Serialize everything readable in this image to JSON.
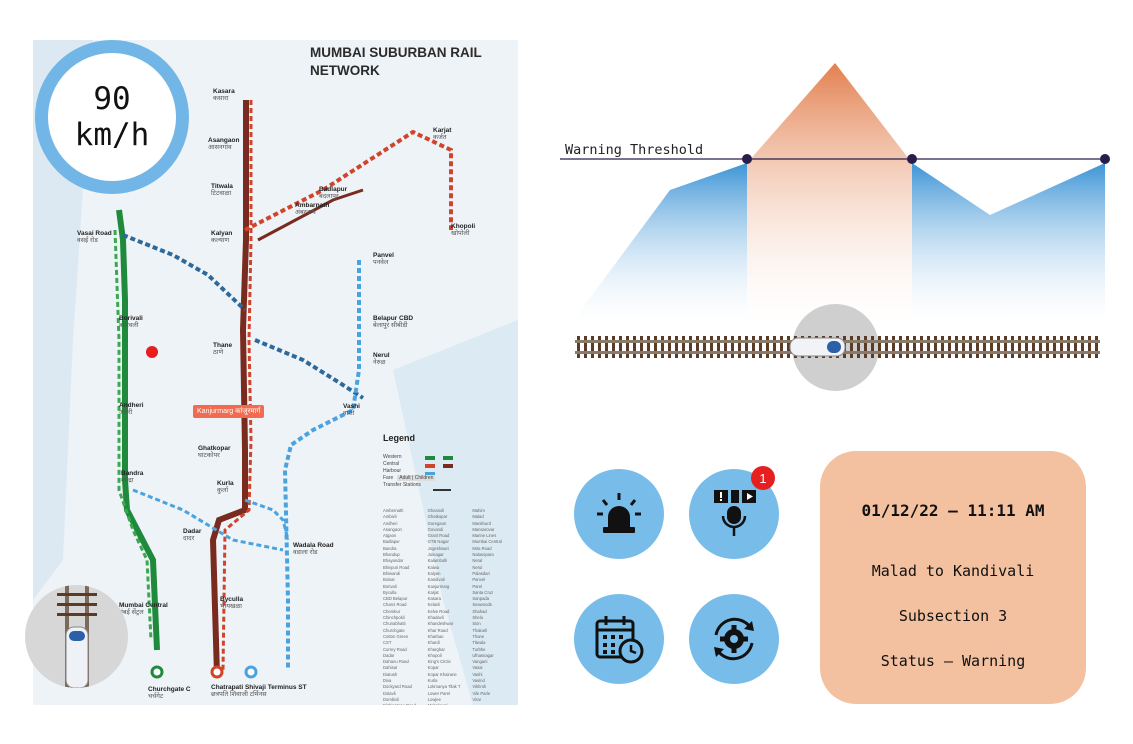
{
  "map": {
    "title": "MUMBAI SUBURBAN RAIL NETWORK",
    "highlight_station": "Kanjurmarg कांजुरमार्ग",
    "stations": [
      {
        "name": "Kasara",
        "sub": "कसारा"
      },
      {
        "name": "Asangaon",
        "sub": "आसनगांव"
      },
      {
        "name": "Titwala",
        "sub": "टिटवाळा"
      },
      {
        "name": "Kalyan",
        "sub": "कल्याण"
      },
      {
        "name": "Karjat",
        "sub": "कर्जत"
      },
      {
        "name": "Badlapur",
        "sub": "बदलापूर"
      },
      {
        "name": "Ambarnath",
        "sub": "अंबरनाथ"
      },
      {
        "name": "Khopoli",
        "sub": "खोपोली"
      },
      {
        "name": "Vasai Road",
        "sub": "वसई रोड"
      },
      {
        "name": "Borivali",
        "sub": "बोरिवली"
      },
      {
        "name": "Andheri",
        "sub": "अंधेरी"
      },
      {
        "name": "Bandra",
        "sub": "बान्द्रा"
      },
      {
        "name": "Thane",
        "sub": "ठाणे"
      },
      {
        "name": "Ghatkopar",
        "sub": "घाटकोपर"
      },
      {
        "name": "Kurla",
        "sub": "कुर्ला"
      },
      {
        "name": "Dadar",
        "sub": "दादर"
      },
      {
        "name": "Panvel",
        "sub": "पनवेल"
      },
      {
        "name": "Belapur CBD",
        "sub": "बेलापुर सीबीडी"
      },
      {
        "name": "Nerul",
        "sub": "नेरुळ"
      },
      {
        "name": "Vashi",
        "sub": "वाशी"
      },
      {
        "name": "Wadala Road",
        "sub": "वडाला रोड"
      },
      {
        "name": "Byculla",
        "sub": "भायखळा"
      },
      {
        "name": "Mumbai Central",
        "sub": "मुंबई सेंट्रल"
      },
      {
        "name": "Churchgate C",
        "sub": "चर्चगेट"
      },
      {
        "name": "Chatrapati Shivaji Terminus ST",
        "sub": "छत्रपति शिवाजी टर्मिनस"
      }
    ],
    "legend": {
      "title": "Legend",
      "rows": [
        "Western",
        "Central",
        "Harbour",
        "Fare",
        "Transfer Stations"
      ],
      "fare_chip": "Adult | Children"
    },
    "index": [
      "Ambernath",
      "Ambivli",
      "Andheri",
      "Asangaon",
      "Atgaon",
      "Badlapur",
      "Bandra",
      "Bhandup",
      "Bhayandar",
      "Bhivpuri Road",
      "Bhiwandi",
      "Boisar",
      "Borivali",
      "Byculla",
      "CBD Belapur",
      "Charni Road",
      "Chembur",
      "Chinchpokli",
      "Chunabhatti",
      "Churchgate",
      "Cotton Green",
      "CST",
      "Currey Road",
      "Dadar",
      "Dahanu Road",
      "Dahisar",
      "Diatush",
      "Diva",
      "Dockyard Road",
      "Dolavli",
      "Dombivli",
      "Elphinstone Road",
      "Ghansoli",
      "Ghatkopar",
      "Goregaon",
      "Govandi",
      "Grant Road",
      "GTB Nagar",
      "Jogeshwari",
      "Juinagar",
      "Kalambolli",
      "Kalwa",
      "Kalyan",
      "Kandivali",
      "Kanjurmarg",
      "Karjat",
      "Kasara",
      "Kelavli",
      "Kelve Road",
      "Khadavli",
      "Khandeshwar",
      "Khar Road",
      "Kharbao",
      "Khardi",
      "Kharghar",
      "Khopoli",
      "King's Circle",
      "Kopar",
      "Kopar Khairane",
      "Kurla",
      "Lokmanya Tilak T",
      "Lower Parel",
      "Lowjee",
      "Mahalaxmi",
      "Mahim",
      "Malad",
      "Mankhurd",
      "Mansarovar",
      "Marine Lines",
      "Mumbai Central",
      "Mira Road",
      "Nalasopara",
      "Neral",
      "Nerul",
      "Palasdari",
      "Panvel",
      "Parel",
      "Santa Cruz",
      "Sanpada",
      "Seawoods",
      "Shahad",
      "Shelu",
      "Sion",
      "Thakurli",
      "Thane",
      "Titwala",
      "Turbhe",
      "Ulhasnagar",
      "Vangani",
      "Vasai",
      "Vashi",
      "Vasind",
      "Vikhroli",
      "Vile Parle",
      "Virar"
    ]
  },
  "speed": {
    "value": "90",
    "unit": "km/h"
  },
  "profile": {
    "threshold_label": "Warning Threshold",
    "colors": {
      "blue": "#3c94d6",
      "orange": "#e3804f",
      "line": "#2a1d4a"
    }
  },
  "controls": {
    "alarm": {
      "icon": "siren-icon"
    },
    "alerts": {
      "icon": "alert-display-icon",
      "badge": "1"
    },
    "schedule": {
      "icon": "calendar-clock-icon"
    },
    "settings": {
      "icon": "gear-sync-icon"
    }
  },
  "info": {
    "datetime": "01/12/22 – 11:11 AM",
    "route": "Malad to Kandivali",
    "subsection": "Subsection 3",
    "status": "Status – Warning"
  }
}
